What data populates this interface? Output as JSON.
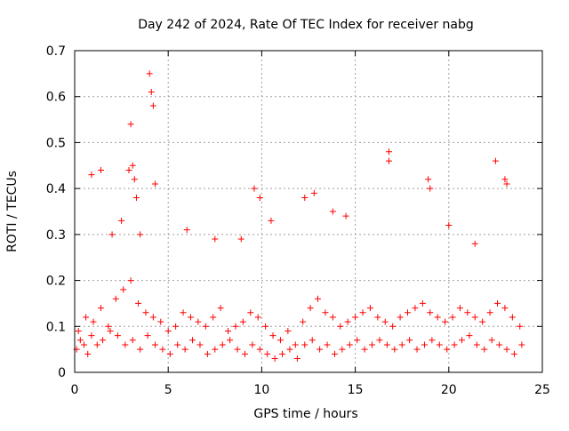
{
  "chart_data": {
    "type": "scatter",
    "title": "Day 242 of 2024, Rate Of TEC Index for receiver nabg",
    "xlabel": "GPS time / hours",
    "ylabel": "ROTI / TECUs",
    "xlim": [
      0,
      25
    ],
    "ylim": [
      0,
      0.7
    ],
    "x_ticks": [
      "0",
      "5",
      "10",
      "15",
      "20",
      "25"
    ],
    "y_ticks": [
      "0",
      "0.1",
      "0.2",
      "0.3",
      "0.4",
      "0.5",
      "0.6",
      "0.7"
    ],
    "x_tick_values": [
      0,
      5,
      10,
      15,
      20,
      25
    ],
    "y_tick_values": [
      0,
      0.1,
      0.2,
      0.3,
      0.4,
      0.5,
      0.6,
      0.7
    ],
    "grid": true,
    "marker": "plus",
    "color": "#ff0000",
    "x": [
      0.2,
      0.6,
      1.0,
      1.4,
      1.8,
      2.2,
      2.6,
      3.0,
      3.4,
      3.8,
      4.2,
      4.6,
      5.0,
      5.4,
      5.8,
      6.2,
      6.6,
      7.0,
      7.4,
      7.8,
      8.2,
      8.6,
      9.0,
      9.4,
      9.8,
      10.2,
      10.6,
      11.0,
      11.4,
      11.8,
      12.2,
      12.6,
      13.0,
      13.4,
      13.8,
      14.2,
      14.6,
      15.0,
      15.4,
      15.8,
      16.2,
      16.6,
      17.0,
      17.4,
      17.8,
      18.2,
      18.6,
      19.0,
      19.4,
      19.8,
      20.2,
      20.6,
      21.0,
      21.4,
      21.8,
      22.2,
      22.6,
      23.0,
      23.4,
      23.8,
      0.1,
      0.3,
      0.5,
      0.7,
      0.9,
      1.2,
      1.5,
      1.9,
      2.3,
      2.7,
      3.1,
      3.5,
      3.9,
      4.3,
      4.7,
      5.1,
      5.5,
      5.9,
      6.3,
      6.7,
      7.1,
      7.5,
      7.9,
      8.3,
      8.7,
      9.1,
      9.5,
      9.9,
      10.3,
      10.7,
      11.1,
      11.5,
      11.9,
      12.3,
      12.7,
      13.1,
      13.5,
      13.9,
      14.3,
      14.7,
      15.1,
      15.5,
      15.9,
      16.3,
      16.7,
      17.1,
      17.5,
      17.9,
      18.3,
      18.7,
      19.1,
      19.5,
      19.9,
      20.3,
      20.7,
      21.1,
      21.5,
      21.9,
      22.3,
      22.7,
      23.1,
      23.5,
      23.9,
      0.9,
      1.4,
      2.0,
      2.9,
      3.0,
      3.1,
      3.2,
      3.3,
      4.0,
      4.1,
      4.2,
      4.3,
      9.6,
      9.9,
      12.3,
      12.8,
      16.8,
      16.8,
      18.9,
      19.0,
      22.5,
      23.0,
      23.1,
      20.0,
      13.8,
      14.5,
      8.9,
      6.0,
      7.5,
      10.5,
      21.4,
      2.5,
      3.5
    ],
    "y": [
      0.09,
      0.12,
      0.11,
      0.14,
      0.1,
      0.16,
      0.18,
      0.2,
      0.15,
      0.13,
      0.12,
      0.11,
      0.09,
      0.1,
      0.13,
      0.12,
      0.11,
      0.1,
      0.12,
      0.14,
      0.09,
      0.1,
      0.11,
      0.13,
      0.12,
      0.1,
      0.08,
      0.07,
      0.09,
      0.06,
      0.11,
      0.14,
      0.16,
      0.13,
      0.12,
      0.1,
      0.11,
      0.12,
      0.13,
      0.14,
      0.12,
      0.11,
      0.1,
      0.12,
      0.13,
      0.14,
      0.15,
      0.13,
      0.12,
      0.11,
      0.12,
      0.14,
      0.13,
      0.12,
      0.11,
      0.13,
      0.15,
      0.14,
      0.12,
      0.1,
      0.05,
      0.07,
      0.06,
      0.04,
      0.08,
      0.06,
      0.07,
      0.09,
      0.08,
      0.06,
      0.07,
      0.05,
      0.08,
      0.06,
      0.05,
      0.04,
      0.06,
      0.05,
      0.07,
      0.06,
      0.04,
      0.05,
      0.06,
      0.07,
      0.05,
      0.04,
      0.06,
      0.05,
      0.04,
      0.03,
      0.04,
      0.05,
      0.03,
      0.06,
      0.07,
      0.05,
      0.06,
      0.04,
      0.05,
      0.06,
      0.07,
      0.05,
      0.06,
      0.07,
      0.06,
      0.05,
      0.06,
      0.07,
      0.05,
      0.06,
      0.07,
      0.06,
      0.05,
      0.06,
      0.07,
      0.08,
      0.06,
      0.05,
      0.07,
      0.06,
      0.05,
      0.04,
      0.06,
      0.43,
      0.44,
      0.3,
      0.44,
      0.54,
      0.45,
      0.42,
      0.38,
      0.65,
      0.61,
      0.58,
      0.41,
      0.4,
      0.38,
      0.38,
      0.39,
      0.48,
      0.46,
      0.42,
      0.4,
      0.46,
      0.42,
      0.41,
      0.32,
      0.35,
      0.34,
      0.29,
      0.31,
      0.29,
      0.33,
      0.28,
      0.33,
      0.3
    ]
  }
}
